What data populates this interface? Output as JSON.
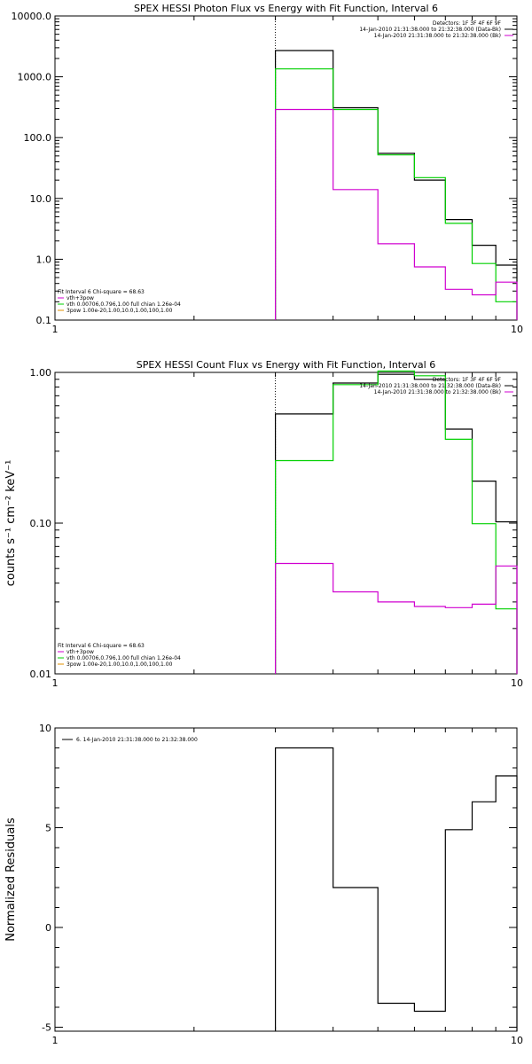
{
  "colors": {
    "black": "#000000",
    "green": "#00d000",
    "magenta": "#d000d0",
    "orange": "#e09000"
  },
  "chart_data": [
    {
      "type": "line",
      "title": "SPEX HESSI Photon Flux vs Energy with Fit Function, Interval 6",
      "xlabel": "",
      "ylabel": "",
      "x_scale": "log",
      "y_scale": "log",
      "xlim": [
        1,
        10
      ],
      "ylim": [
        0.1,
        10000
      ],
      "x_tick_labels": [
        "1",
        "10"
      ],
      "y_tick_labels": [
        "0.1",
        "1.0",
        "10.0",
        "100.0",
        "1000.0",
        "10000.0"
      ],
      "dotted_marker_x": 3.0,
      "bin_edges": [
        3.0,
        4.0,
        5.0,
        6.0,
        7.0,
        8.0,
        9.0,
        10.0
      ],
      "series": [
        {
          "color": "black",
          "values": [
            2700,
            310,
            55,
            20,
            4.5,
            1.7,
            0.8
          ]
        },
        {
          "color": "green",
          "values": [
            1350,
            290,
            52,
            22,
            3.9,
            0.85,
            0.2
          ]
        },
        {
          "color": "magenta",
          "values": [
            290,
            14,
            1.8,
            0.75,
            0.32,
            0.26,
            0.42
          ]
        }
      ],
      "legend_top_right": [
        {
          "text": "Detectors: 1F 3F 4F 6F 9F",
          "color": ""
        },
        {
          "text": "14-Jan-2010 21:31:38.000 to 21:32:38.000 (Data-Bk)",
          "color": "black"
        },
        {
          "text": "14-Jan-2010 21:31:38.000 to 21:32:38.000 (Bk)",
          "color": "magenta"
        }
      ],
      "fit_legend": [
        {
          "text": "Fit Interval 6   Chi-square = 68.63",
          "color": ""
        },
        {
          "text": "vth+3pow",
          "color": "magenta"
        },
        {
          "text": "vth 0.00706,0.796,1.00  full chian 1.26e-04",
          "color": "green"
        },
        {
          "text": "3pow 1.00e-20,1.00,10.0,1.00,100,1.00",
          "color": "orange"
        }
      ]
    },
    {
      "type": "line",
      "title": "SPEX HESSI Count Flux vs Energy with Fit Function, Interval 6",
      "xlabel": "",
      "ylabel": "counts s⁻¹ cm⁻² keV⁻¹",
      "x_scale": "log",
      "y_scale": "log",
      "xlim": [
        1,
        10
      ],
      "ylim": [
        0.01,
        1.0
      ],
      "x_tick_labels": [
        "1",
        "10"
      ],
      "y_tick_labels": [
        "0.01",
        "0.10",
        "1.00"
      ],
      "dotted_marker_x": 3.0,
      "bin_edges": [
        3.0,
        4.0,
        5.0,
        6.0,
        7.0,
        8.0,
        9.0,
        10.0
      ],
      "series": [
        {
          "color": "black",
          "values": [
            0.53,
            0.85,
            0.97,
            0.9,
            0.42,
            0.19,
            0.102
          ]
        },
        {
          "color": "green",
          "values": [
            0.26,
            0.83,
            1.02,
            0.95,
            0.36,
            0.099,
            0.027
          ]
        },
        {
          "color": "magenta",
          "values": [
            0.054,
            0.035,
            0.03,
            0.028,
            0.0275,
            0.029,
            0.052
          ]
        }
      ],
      "legend_top_right": [
        {
          "text": "Detectors: 1F 3F 4F 6F 9F",
          "color": ""
        },
        {
          "text": "14-Jan-2010 21:31:38.000 to 21:32:38.000 (Data-Bk)",
          "color": "black"
        },
        {
          "text": "14-Jan-2010 21:31:38.000 to 21:32:38.000 (Bk)",
          "color": "magenta"
        }
      ],
      "fit_legend": [
        {
          "text": "Fit Interval 6   Chi-square = 68.63",
          "color": ""
        },
        {
          "text": "vth+3pow",
          "color": "magenta"
        },
        {
          "text": "vth 0.00706,0.796,1.00  full chian 1.26e-04",
          "color": "green"
        },
        {
          "text": "3pow 1.00e-20,1.00,10.0,1.00,100,1.00",
          "color": "orange"
        }
      ]
    },
    {
      "type": "line",
      "title": "",
      "xlabel": "",
      "ylabel": "Normalized Residuals",
      "x_scale": "log",
      "y_scale": "linear",
      "xlim": [
        1,
        10
      ],
      "ylim": [
        -5.2,
        10
      ],
      "x_tick_labels": [
        "1",
        "10"
      ],
      "y_tick_labels": [
        "-5",
        "0",
        "5",
        "10"
      ],
      "bin_edges": [
        3.0,
        4.0,
        5.0,
        6.0,
        7.0,
        8.0,
        9.0,
        10.0
      ],
      "series": [
        {
          "color": "black",
          "values": [
            9.0,
            2.0,
            -3.8,
            -4.2,
            4.9,
            6.3,
            7.6
          ]
        }
      ],
      "legend_top_left": [
        {
          "text": "6. 14-Jan-2010 21:31:38.000 to 21:32:38.000",
          "color": "black"
        }
      ]
    }
  ]
}
